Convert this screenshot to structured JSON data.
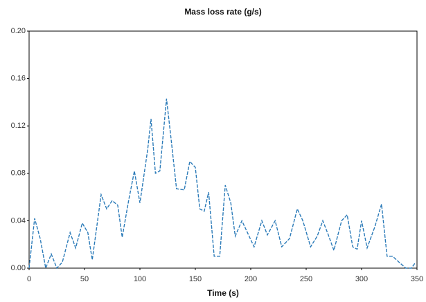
{
  "chart_data": {
    "type": "line",
    "title": "Mass loss rate (g/s)",
    "xlabel": "Time (s)",
    "x": [
      0,
      5,
      10,
      15,
      20,
      25,
      30,
      37,
      42,
      48,
      53,
      57,
      65,
      70,
      75,
      80,
      84,
      90,
      95,
      100,
      107,
      110,
      114,
      118,
      124,
      128,
      133,
      140,
      145,
      150,
      154,
      158,
      162,
      167,
      172,
      177,
      182,
      186,
      192,
      197,
      203,
      210,
      215,
      222,
      228,
      235,
      242,
      247,
      254,
      260,
      265,
      270,
      275,
      282,
      287,
      292,
      296,
      300,
      305,
      312,
      318,
      323,
      328,
      335,
      340,
      345,
      348
    ],
    "series": [
      {
        "name": "Mass loss rate",
        "color": "#2a7ab8",
        "values": [
          0.0,
          0.042,
          0.025,
          0.0,
          0.012,
          0.0,
          0.005,
          0.03,
          0.017,
          0.038,
          0.03,
          0.007,
          0.062,
          0.05,
          0.057,
          0.053,
          0.026,
          0.058,
          0.082,
          0.055,
          0.1,
          0.126,
          0.08,
          0.082,
          0.143,
          0.11,
          0.067,
          0.066,
          0.09,
          0.085,
          0.05,
          0.048,
          0.064,
          0.01,
          0.01,
          0.07,
          0.055,
          0.027,
          0.04,
          0.03,
          0.018,
          0.04,
          0.028,
          0.04,
          0.018,
          0.025,
          0.05,
          0.04,
          0.018,
          0.027,
          0.04,
          0.028,
          0.015,
          0.04,
          0.045,
          0.018,
          0.016,
          0.04,
          0.017,
          0.035,
          0.054,
          0.01,
          0.01,
          0.004,
          0.0,
          0.0,
          0.004
        ]
      }
    ],
    "xlim": [
      0,
      350
    ],
    "xticks": [
      0,
      50,
      100,
      150,
      200,
      250,
      300,
      350
    ],
    "ylim": [
      0,
      0.2
    ],
    "yticks": [
      {
        "value": 0,
        "label": "0.00"
      },
      0.04,
      0.08,
      0.12,
      0.16,
      {
        "value": 0.2,
        "label": "0.20"
      }
    ],
    "line_style": "dashed"
  }
}
